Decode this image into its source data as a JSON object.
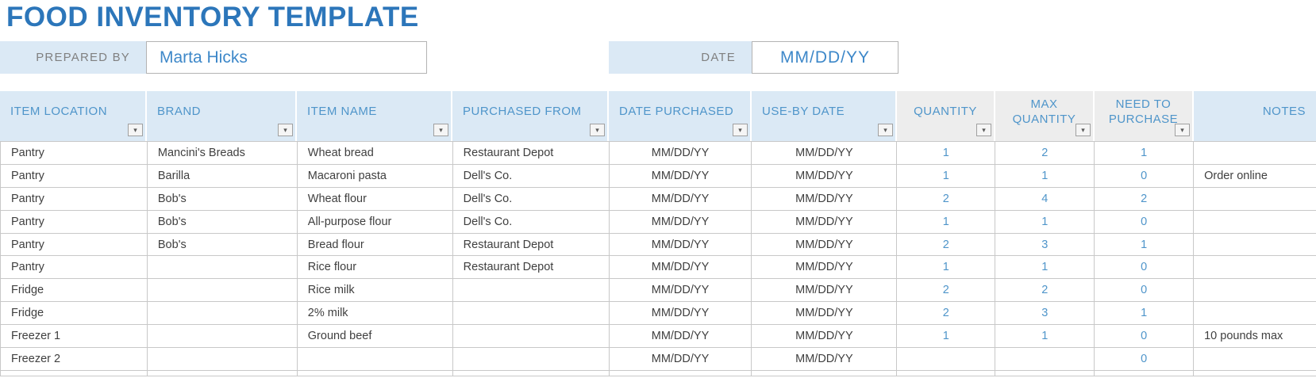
{
  "title": "FOOD INVENTORY TEMPLATE",
  "form": {
    "prepared_by_label": "PREPARED BY",
    "prepared_by_value": "Marta Hicks",
    "date_label": "DATE",
    "date_value": "MM/DD/YY"
  },
  "icons": {
    "filter_dropdown": "▾"
  },
  "colors": {
    "title_blue": "#2c76ba",
    "header_bg_blue": "#dbe9f5",
    "header_bg_gray": "#ededed",
    "header_text_blue": "#4f95ca",
    "value_blue": "#3e88c9",
    "number_blue": "#4f95ca",
    "label_gray": "#808080",
    "cell_text": "#3f3f3f",
    "grid_border": "#c8c8c8"
  },
  "table": {
    "columns": [
      {
        "key": "item-location",
        "label": "ITEM LOCATION"
      },
      {
        "key": "brand",
        "label": "BRAND"
      },
      {
        "key": "item-name",
        "label": "ITEM NAME"
      },
      {
        "key": "purchased-from",
        "label": "PURCHASED FROM"
      },
      {
        "key": "date-purchased",
        "label": "DATE PURCHASED"
      },
      {
        "key": "use-by-date",
        "label": "USE-BY DATE"
      },
      {
        "key": "quantity",
        "label": "QUANTITY"
      },
      {
        "key": "max-quantity",
        "label": "MAX QUANTITY"
      },
      {
        "key": "need-to-purchase",
        "label": "NEED TO PURCHASE"
      },
      {
        "key": "notes",
        "label": "NOTES"
      }
    ],
    "rows": [
      [
        "Pantry",
        "Mancini's Breads",
        "Wheat bread",
        "Restaurant Depot",
        "MM/DD/YY",
        "MM/DD/YY",
        "1",
        "2",
        "1",
        ""
      ],
      [
        "Pantry",
        "Barilla",
        "Macaroni pasta",
        "Dell's Co.",
        "MM/DD/YY",
        "MM/DD/YY",
        "1",
        "1",
        "0",
        "Order online"
      ],
      [
        "Pantry",
        "Bob's",
        "Wheat flour",
        "Dell's Co.",
        "MM/DD/YY",
        "MM/DD/YY",
        "2",
        "4",
        "2",
        ""
      ],
      [
        "Pantry",
        "Bob's",
        "All-purpose flour",
        "Dell's Co.",
        "MM/DD/YY",
        "MM/DD/YY",
        "1",
        "1",
        "0",
        ""
      ],
      [
        "Pantry",
        "Bob's",
        "Bread flour",
        "Restaurant Depot",
        "MM/DD/YY",
        "MM/DD/YY",
        "2",
        "3",
        "1",
        ""
      ],
      [
        "Pantry",
        "",
        "Rice flour",
        "Restaurant Depot",
        "MM/DD/YY",
        "MM/DD/YY",
        "1",
        "1",
        "0",
        ""
      ],
      [
        "Fridge",
        "",
        "Rice milk",
        "",
        "MM/DD/YY",
        "MM/DD/YY",
        "2",
        "2",
        "0",
        ""
      ],
      [
        "Fridge",
        "",
        "2% milk",
        "",
        "MM/DD/YY",
        "MM/DD/YY",
        "2",
        "3",
        "1",
        ""
      ],
      [
        "Freezer 1",
        "",
        "Ground beef",
        "",
        "MM/DD/YY",
        "MM/DD/YY",
        "1",
        "1",
        "0",
        "10 pounds max"
      ],
      [
        "Freezer 2",
        "",
        "",
        "",
        "MM/DD/YY",
        "MM/DD/YY",
        "",
        "",
        "0",
        ""
      ]
    ]
  }
}
